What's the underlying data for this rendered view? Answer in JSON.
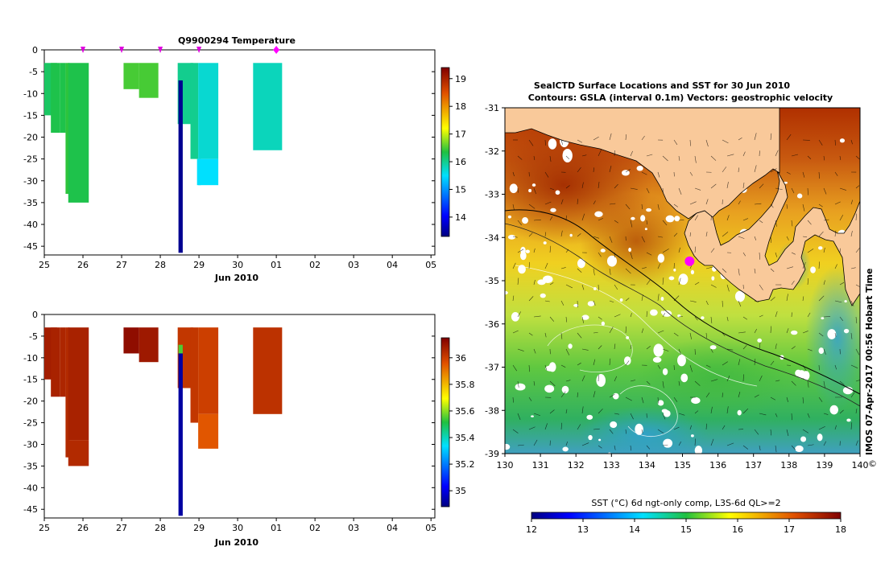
{
  "chart_data": [
    {
      "type": "bar",
      "panel": "temperature",
      "title": "Q9900294  Temperature",
      "xlabel": "Jun 2010",
      "x_ticks": [
        "25",
        "26",
        "27",
        "28",
        "29",
        "30",
        "01",
        "02",
        "03",
        "04",
        "05"
      ],
      "xlim": [
        25,
        35.1
      ],
      "y_ticks": [
        "0",
        "-5",
        "-10",
        "-15",
        "-20",
        "-25",
        "-30",
        "-35",
        "-40",
        "-45"
      ],
      "ylim": [
        -47,
        0
      ],
      "marker_days": [
        26,
        27,
        28,
        29
      ],
      "current_day": 31,
      "colorbar_ticks": [
        "19",
        "18",
        "17",
        "16",
        "15",
        "14"
      ],
      "colorbar_range": [
        13.3,
        19.4
      ],
      "profiles": [
        {
          "day": 25.0,
          "day_end": 25.33,
          "depth_top": -3,
          "segments": [
            {
              "to": -15,
              "value": 16.2
            }
          ]
        },
        {
          "day": 25.17,
          "day_end": 25.4,
          "depth_top": -3,
          "segments": [
            {
              "to": -19,
              "value": 16.3
            }
          ]
        },
        {
          "day": 25.4,
          "day_end": 25.55,
          "depth_top": -3,
          "segments": [
            {
              "to": -19,
              "value": 16.3
            }
          ]
        },
        {
          "day": 25.55,
          "day_end": 25.65,
          "depth_top": -3,
          "segments": [
            {
              "to": -33,
              "value": 16.4
            }
          ]
        },
        {
          "day": 25.62,
          "day_end": 26.15,
          "depth_top": -3,
          "segments": [
            {
              "to": -35,
              "value": 16.3
            }
          ]
        },
        {
          "day": 27.05,
          "day_end": 27.45,
          "depth_top": -3,
          "segments": [
            {
              "to": -9,
              "value": 16.5
            }
          ]
        },
        {
          "day": 27.45,
          "day_end": 27.95,
          "depth_top": -3,
          "segments": [
            {
              "to": -11,
              "value": 16.5
            }
          ]
        },
        {
          "day": 28.45,
          "day_end": 28.85,
          "depth_top": -3,
          "segments": [
            {
              "to": -17,
              "value": 16.0
            }
          ]
        },
        {
          "day": 28.78,
          "day_end": 28.98,
          "depth_top": -3,
          "segments": [
            {
              "to": -25,
              "value": 16.0
            }
          ]
        },
        {
          "day": 28.98,
          "day_end": 29.5,
          "depth_top": -3,
          "segments": [
            {
              "to": -25,
              "value": 15.7
            },
            {
              "to": -31,
              "value": 15.5
            }
          ]
        },
        {
          "day": 28.95,
          "day_end": 29.05,
          "depth_top": -25,
          "segments": [
            {
              "to": -31,
              "value": 15.5
            }
          ]
        },
        {
          "day": 30.4,
          "day_end": 31.15,
          "depth_top": -3,
          "segments": [
            {
              "to": -23,
              "value": 15.8
            }
          ]
        },
        {
          "day": 28.47,
          "day_end": 28.58,
          "depth_top": -7,
          "segments": [
            {
              "to": -46.5,
              "value": 13.4
            }
          ]
        }
      ]
    },
    {
      "type": "bar",
      "panel": "salinity",
      "title": "",
      "xlabel": "Jun 2010",
      "x_ticks": [
        "25",
        "26",
        "27",
        "28",
        "29",
        "30",
        "01",
        "02",
        "03",
        "04",
        "05"
      ],
      "xlim": [
        25,
        35.1
      ],
      "y_ticks": [
        "0",
        "-5",
        "-10",
        "-15",
        "-20",
        "-25",
        "-30",
        "-35",
        "-40",
        "-45"
      ],
      "ylim": [
        -47,
        0
      ],
      "colorbar_ticks": [
        "36",
        "35.8",
        "35.6",
        "35.4",
        "35.2",
        "35"
      ],
      "colorbar_range": [
        34.88,
        36.15
      ],
      "profiles": [
        {
          "day": 25.0,
          "day_end": 25.33,
          "depth_top": -3,
          "segments": [
            {
              "to": -15,
              "value": 36.08
            }
          ]
        },
        {
          "day": 25.17,
          "day_end": 25.4,
          "depth_top": -3,
          "segments": [
            {
              "to": -19,
              "value": 36.07
            }
          ]
        },
        {
          "day": 25.4,
          "day_end": 25.55,
          "depth_top": -3,
          "segments": [
            {
              "to": -19,
              "value": 36.06
            }
          ]
        },
        {
          "day": 25.55,
          "day_end": 25.65,
          "depth_top": -3,
          "segments": [
            {
              "to": -33,
              "value": 36.05
            }
          ]
        },
        {
          "day": 25.62,
          "day_end": 26.15,
          "depth_top": -3,
          "segments": [
            {
              "to": -29,
              "value": 36.07
            },
            {
              "to": -35,
              "value": 36.05
            }
          ]
        },
        {
          "day": 27.05,
          "day_end": 27.45,
          "depth_top": -3,
          "segments": [
            {
              "to": -9,
              "value": 36.12
            }
          ]
        },
        {
          "day": 27.45,
          "day_end": 27.95,
          "depth_top": -3,
          "segments": [
            {
              "to": -11,
              "value": 36.09
            }
          ]
        },
        {
          "day": 28.45,
          "day_end": 28.85,
          "depth_top": -3,
          "segments": [
            {
              "to": -17,
              "value": 36.02
            }
          ]
        },
        {
          "day": 28.78,
          "day_end": 28.98,
          "depth_top": -3,
          "segments": [
            {
              "to": -25,
              "value": 36.02
            }
          ]
        },
        {
          "day": 28.98,
          "day_end": 29.5,
          "depth_top": -3,
          "segments": [
            {
              "to": -23,
              "value": 36.0
            },
            {
              "to": -31,
              "value": 35.95
            }
          ]
        },
        {
          "day": 30.4,
          "day_end": 31.15,
          "depth_top": -3,
          "segments": [
            {
              "to": -23,
              "value": 36.03
            }
          ]
        },
        {
          "day": 28.47,
          "day_end": 28.58,
          "depth_top": -7,
          "segments": [
            {
              "to": -9,
              "value": 35.55
            },
            {
              "to": -46.5,
              "value": 34.92
            }
          ]
        }
      ]
    },
    {
      "type": "heatmap",
      "panel": "sst-map",
      "title_line1": "SealCTD Surface Locations and SST for 30 Jun 2010",
      "title_line2": "Contours: GSLA (interval 0.1m) Vectors: geostrophic velocity",
      "x_ticks": [
        "130",
        "131",
        "132",
        "133",
        "134",
        "135",
        "136",
        "137",
        "138",
        "139",
        "140"
      ],
      "xlim": [
        130,
        140
      ],
      "y_ticks": [
        "-31",
        "-32",
        "-33",
        "-34",
        "-35",
        "-36",
        "-37",
        "-38",
        "-39"
      ],
      "ylim": [
        -39,
        -31
      ],
      "colorbar_label": "SST (°C) 6d ngt-only comp, L3S-6d QL>=2",
      "colorbar_ticks": [
        "12",
        "13",
        "14",
        "15",
        "16",
        "17",
        "18"
      ],
      "colorbar_range": [
        12,
        18
      ],
      "seal_position": {
        "lon": 135.2,
        "lat": -34.55
      },
      "watermark": "IMOS 07-Apr-2017 00:56 Hobart Time",
      "copyright_symbol": "©"
    }
  ],
  "colors": {
    "land": "#f9c99a",
    "seal_marker": "#ff00ff",
    "marker": "#e000e0"
  }
}
